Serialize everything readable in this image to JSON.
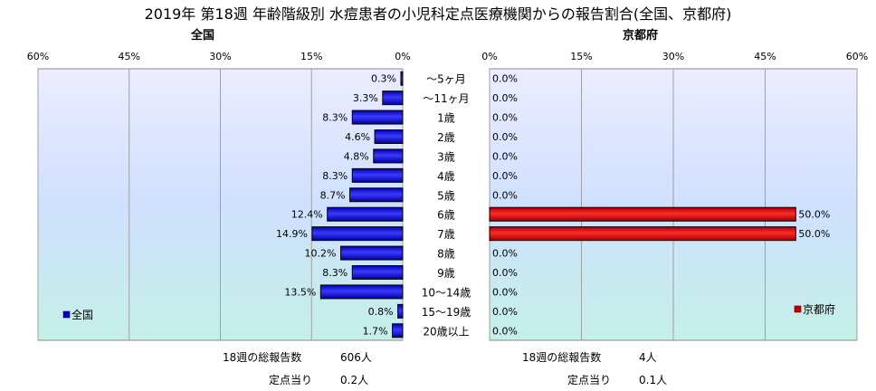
{
  "title": "2019年 第18週 年齢階級別 水痘患者の小児科定点医療機関からの報告割合(全国、京都府)",
  "chart_data": [
    {
      "type": "bar",
      "orientation": "horizontal",
      "panel_title": "全国",
      "categories": [
        "～5ヶ月",
        "～11ヶ月",
        "1歳",
        "2歳",
        "3歳",
        "4歳",
        "5歳",
        "6歳",
        "7歳",
        "8歳",
        "9歳",
        "10～14歳",
        "15～19歳",
        "20歳以上"
      ],
      "series": [
        {
          "name": "全国",
          "color": "#0000cc",
          "values": [
            0.3,
            3.3,
            8.3,
            4.6,
            4.8,
            8.3,
            8.7,
            12.4,
            14.9,
            10.2,
            8.3,
            13.5,
            0.8,
            1.7
          ],
          "labels": [
            "0.3%",
            "3.3%",
            "8.3%",
            "4.6%",
            "4.8%",
            "8.3%",
            "8.7%",
            "12.4%",
            "14.9%",
            "10.2%",
            "8.3%",
            "13.5%",
            "0.8%",
            "1.7%"
          ]
        }
      ],
      "xlim": [
        0,
        60
      ],
      "direction": "reversed",
      "ticks": [
        "60%",
        "45%",
        "30%",
        "15%",
        "0%"
      ],
      "legend": "lower-left",
      "grid": true
    },
    {
      "type": "bar",
      "orientation": "horizontal",
      "panel_title": "京都府",
      "categories": [
        "～5ヶ月",
        "～11ヶ月",
        "1歳",
        "2歳",
        "3歳",
        "4歳",
        "5歳",
        "6歳",
        "7歳",
        "8歳",
        "9歳",
        "10～14歳",
        "15～19歳",
        "20歳以上"
      ],
      "series": [
        {
          "name": "京都府",
          "color": "#cc0000",
          "values": [
            0,
            0,
            0,
            0,
            0,
            0,
            0,
            50,
            50,
            0,
            0,
            0,
            0,
            0
          ],
          "labels": [
            "0.0%",
            "0.0%",
            "0.0%",
            "0.0%",
            "0.0%",
            "0.0%",
            "0.0%",
            "50.0%",
            "50.0%",
            "0.0%",
            "0.0%",
            "0.0%",
            "0.0%",
            "0.0%"
          ]
        }
      ],
      "xlim": [
        0,
        60
      ],
      "ticks": [
        "0%",
        "15%",
        "30%",
        "45%",
        "60%"
      ],
      "legend": "lower-right",
      "grid": true
    }
  ],
  "footer": {
    "national_total_label": "18週の総報告数",
    "national_total_value": "606人",
    "national_per_label": "定点当り",
    "national_per_value": "0.2人",
    "kyoto_total_label": "18週の総報告数",
    "kyoto_total_value": "4人",
    "kyoto_per_label": "定点当り",
    "kyoto_per_value": "0.1人"
  }
}
